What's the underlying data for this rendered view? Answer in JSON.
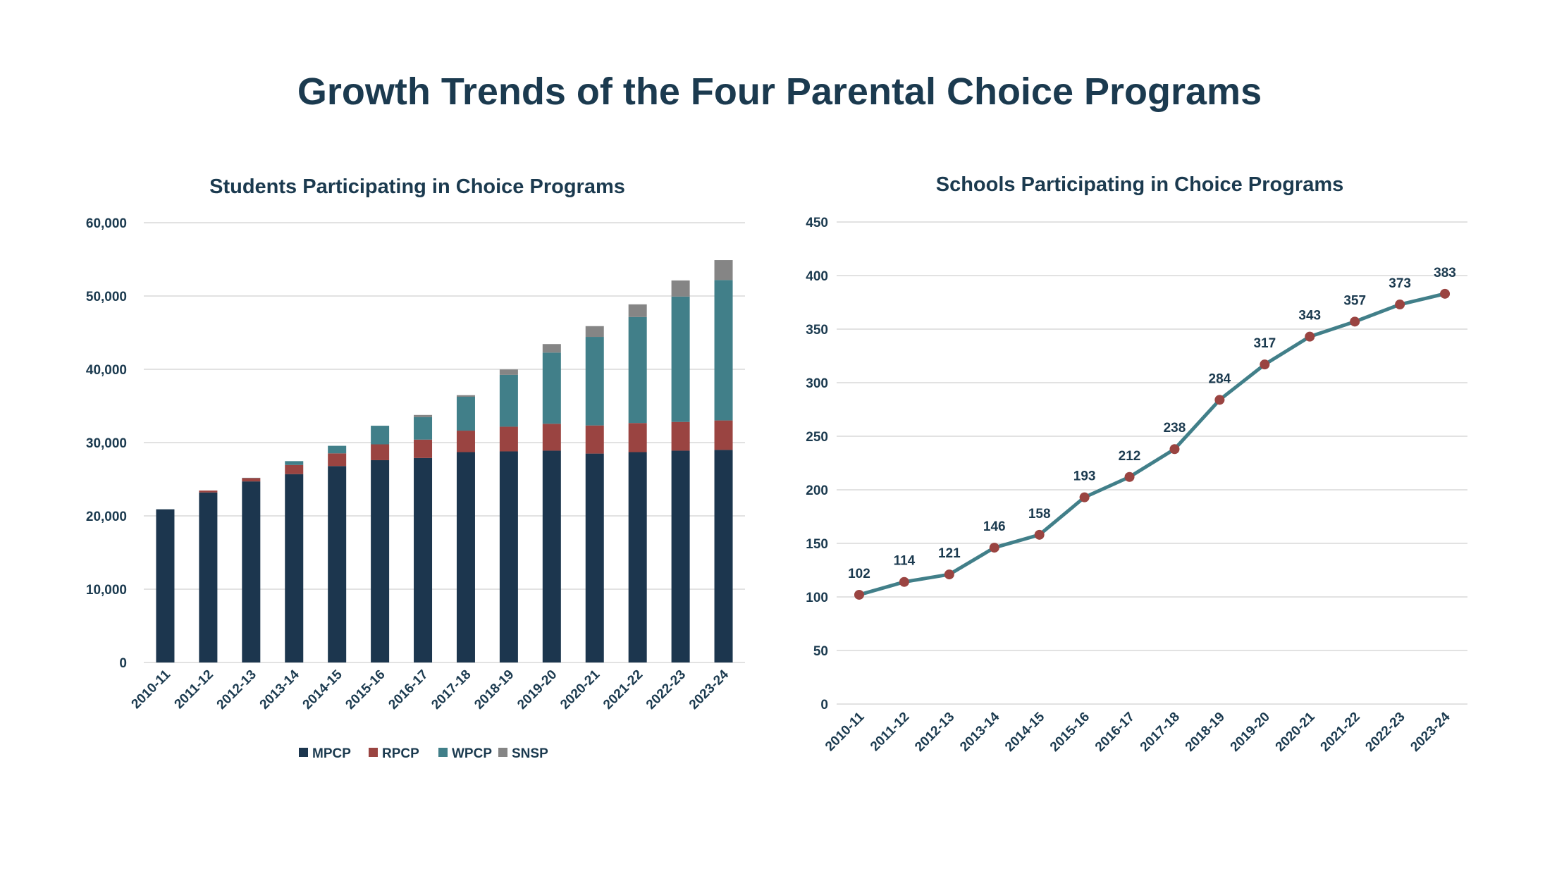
{
  "title": "Growth Trends of the Four Parental Choice Programs",
  "colors": {
    "text": "#1b3a4f",
    "MPCP": "#1c364e",
    "RPCP": "#9a4441",
    "WPCP": "#417f89",
    "SNSP": "#858585",
    "line": "#417f89",
    "marker": "#9a4441"
  },
  "chart_data": [
    {
      "type": "bar",
      "stacked": true,
      "title": "Students Participating in Choice Programs",
      "categories": [
        "2010-11",
        "2011-12",
        "2012-13",
        "2013-14",
        "2014-15",
        "2015-16",
        "2016-17",
        "2017-18",
        "2018-19",
        "2019-20",
        "2020-21",
        "2021-22",
        "2022-23",
        "2023-24"
      ],
      "series": [
        {
          "name": "MPCP",
          "values": [
            20900,
            23200,
            24700,
            25700,
            26800,
            27600,
            27900,
            28700,
            28800,
            28900,
            28500,
            28700,
            28900,
            29000
          ]
        },
        {
          "name": "RPCP",
          "values": [
            0,
            260,
            470,
            1250,
            1730,
            2160,
            2510,
            2930,
            3370,
            3670,
            3840,
            3970,
            3920,
            4020
          ]
        },
        {
          "name": "WPCP",
          "values": [
            0,
            0,
            30,
            520,
            1030,
            2540,
            3060,
            4620,
            7070,
            9710,
            12080,
            14460,
            17100,
            19160
          ]
        },
        {
          "name": "SNSP",
          "values": [
            0,
            0,
            0,
            0,
            0,
            0,
            300,
            220,
            740,
            1160,
            1470,
            1730,
            2200,
            2720
          ]
        }
      ],
      "ylim": [
        0,
        60000
      ],
      "yticks": [
        "0",
        "10,000",
        "20,000",
        "30,000",
        "40,000",
        "50,000",
        "60,000"
      ],
      "ytick_values": [
        0,
        10000,
        20000,
        30000,
        40000,
        50000,
        60000
      ],
      "grid": true,
      "legend": "bottom"
    },
    {
      "type": "line",
      "title": "Schools Participating in Choice Programs",
      "categories": [
        "2010-11",
        "2011-12",
        "2012-13",
        "2013-14",
        "2014-15",
        "2015-16",
        "2016-17",
        "2017-18",
        "2018-19",
        "2019-20",
        "2020-21",
        "2021-22",
        "2022-23",
        "2023-24"
      ],
      "values": [
        102,
        114,
        121,
        146,
        158,
        193,
        212,
        238,
        284,
        317,
        343,
        357,
        373,
        383
      ],
      "data_labels": [
        "102",
        "114",
        "121",
        "146",
        "158",
        "193",
        "212",
        "238",
        "284",
        "317",
        "343",
        "357",
        "373",
        "383"
      ],
      "ylim": [
        0,
        450
      ],
      "yticks": [
        "0",
        "50",
        "100",
        "150",
        "200",
        "250",
        "300",
        "350",
        "400",
        "450"
      ],
      "ytick_values": [
        0,
        50,
        100,
        150,
        200,
        250,
        300,
        350,
        400,
        450
      ],
      "grid": true
    }
  ]
}
